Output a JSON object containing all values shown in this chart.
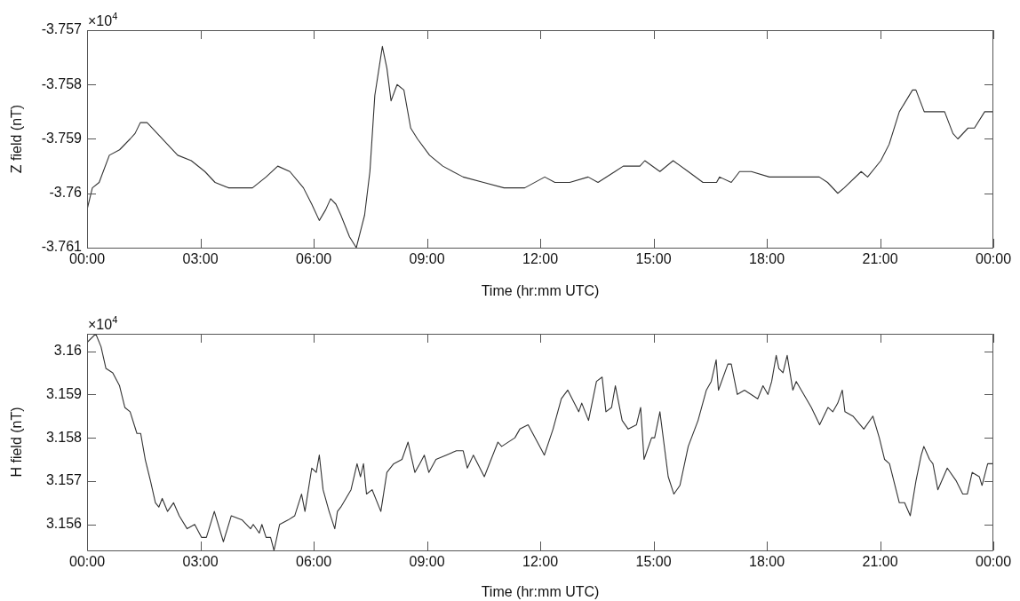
{
  "chart_data": [
    {
      "type": "line",
      "xlabel": "Time (hr:mm UTC)",
      "ylabel": "Z field (nT)",
      "annotations": [
        "×10$^{4}$"
      ],
      "grid": false,
      "legend": false,
      "marker": "none",
      "line_style": "solid",
      "xlim": [
        0,
        24
      ],
      "xticks": [
        {
          "value": 0,
          "label": "00:00"
        },
        {
          "value": 3,
          "label": "03:00"
        },
        {
          "value": 6,
          "label": "06:00"
        },
        {
          "value": 9,
          "label": "09:00"
        },
        {
          "value": 12,
          "label": "12:00"
        },
        {
          "value": 15,
          "label": "15:00"
        },
        {
          "value": 18,
          "label": "18:00"
        },
        {
          "value": 21,
          "label": "21:00"
        },
        {
          "value": 24,
          "label": "00:00"
        }
      ],
      "ylim": [
        -3.761,
        -3.757
      ],
      "yticks": [
        -3.761,
        -3.76,
        -3.759,
        -3.758,
        -3.757
      ],
      "series": [
        {
          "color": "#333333",
          "x": [
            0,
            0.14,
            0.32,
            0.59,
            0.86,
            1.14,
            1.27,
            1.41,
            1.59,
            1.86,
            2.13,
            2.4,
            2.76,
            3.12,
            3.39,
            3.75,
            4.11,
            4.38,
            4.74,
            5.05,
            5.37,
            5.73,
            5.95,
            6.15,
            6.32,
            6.45,
            6.59,
            6.72,
            6.95,
            7.13,
            7.35,
            7.49,
            7.62,
            7.82,
            7.94,
            8.05,
            8.21,
            8.39,
            8.57,
            8.75,
            9.07,
            9.42,
            9.96,
            10.5,
            11.04,
            11.59,
            12.12,
            12.39,
            12.78,
            13.27,
            13.53,
            13.98,
            14.2,
            14.64,
            14.77,
            15.17,
            15.52,
            15.92,
            16.31,
            16.67,
            16.75,
            17.06,
            17.28,
            17.59,
            18.07,
            18.29,
            18.69,
            19.08,
            19.39,
            19.61,
            19.88,
            20.05,
            20.5,
            20.67,
            21.02,
            21.24,
            21.51,
            21.86,
            21.95,
            22.17,
            22.35,
            22.71,
            22.93,
            23.06,
            23.33,
            23.5,
            23.77,
            23.99
          ],
          "values": [
            -3.7603,
            -3.7599,
            -3.7598,
            -3.7593,
            -3.7592,
            -3.759,
            -3.7589,
            -3.7587,
            -3.7587,
            -3.7589,
            -3.7591,
            -3.7593,
            -3.7594,
            -3.7596,
            -3.7598,
            -3.7599,
            -3.7599,
            -3.7599,
            -3.7597,
            -3.7595,
            -3.7596,
            -3.7599,
            -3.7602,
            -3.7605,
            -3.7603,
            -3.7601,
            -3.7602,
            -3.7604,
            -3.7608,
            -3.761,
            -3.7604,
            -3.7596,
            -3.7582,
            -3.7573,
            -3.7577,
            -3.7583,
            -3.758,
            -3.7581,
            -3.7588,
            -3.759,
            -3.7593,
            -3.7595,
            -3.7597,
            -3.7598,
            -3.7599,
            -3.7599,
            -3.7597,
            -3.7598,
            -3.7598,
            -3.7597,
            -3.7598,
            -3.7596,
            -3.7595,
            -3.7595,
            -3.7594,
            -3.7596,
            -3.7594,
            -3.7596,
            -3.7598,
            -3.7598,
            -3.7597,
            -3.7598,
            -3.7596,
            -3.7596,
            -3.7597,
            -3.7597,
            -3.7597,
            -3.7597,
            -3.7597,
            -3.7598,
            -3.76,
            -3.7599,
            -3.7596,
            -3.7597,
            -3.7594,
            -3.7591,
            -3.7585,
            -3.7581,
            -3.7581,
            -3.7585,
            -3.7585,
            -3.7585,
            -3.7589,
            -3.759,
            -3.7588,
            -3.7588,
            -3.7585,
            -3.7585
          ]
        }
      ]
    },
    {
      "type": "line",
      "xlabel": "Time (hr:mm UTC)",
      "ylabel": "H field (nT)",
      "annotations": [
        "×10$^{4}$"
      ],
      "grid": false,
      "legend": false,
      "marker": "none",
      "line_style": "solid",
      "xlim": [
        0,
        24
      ],
      "xticks": [
        {
          "value": 0,
          "label": "00:00"
        },
        {
          "value": 3,
          "label": "03:00"
        },
        {
          "value": 6,
          "label": "06:00"
        },
        {
          "value": 9,
          "label": "09:00"
        },
        {
          "value": 12,
          "label": "12:00"
        },
        {
          "value": 15,
          "label": "15:00"
        },
        {
          "value": 18,
          "label": "18:00"
        },
        {
          "value": 21,
          "label": "21:00"
        },
        {
          "value": 24,
          "label": "00:00"
        }
      ],
      "ylim": [
        3.1554,
        3.1604
      ],
      "yticks": [
        3.156,
        3.157,
        3.158,
        3.159,
        3.16
      ],
      "series": [
        {
          "color": "#333333",
          "x": [
            0,
            0.23,
            0.37,
            0.5,
            0.68,
            0.86,
            1,
            1.14,
            1.32,
            1.42,
            1.54,
            1.68,
            1.81,
            1.9,
            1.99,
            2.13,
            2.29,
            2.44,
            2.65,
            2.85,
            3.03,
            3.16,
            3.37,
            3.61,
            3.82,
            4.11,
            4.33,
            4.4,
            4.56,
            4.63,
            4.74,
            4.86,
            4.95,
            5.1,
            5.32,
            5.5,
            5.68,
            5.77,
            5.95,
            6.07,
            6.15,
            6.25,
            6.41,
            6.56,
            6.63,
            6.72,
            6.99,
            7.15,
            7.24,
            7.32,
            7.4,
            7.55,
            7.78,
            7.94,
            8.12,
            8.34,
            8.5,
            8.68,
            8.81,
            8.93,
            9.05,
            9.24,
            9.51,
            9.78,
            9.96,
            10.07,
            10.23,
            10.52,
            10.88,
            10.98,
            11.33,
            11.46,
            11.68,
            12.11,
            12.34,
            12.56,
            12.73,
            13.02,
            13.1,
            13.28,
            13.49,
            13.64,
            13.74,
            13.89,
            13.99,
            14.17,
            14.33,
            14.55,
            14.66,
            14.75,
            14.95,
            15.03,
            15.17,
            15.39,
            15.54,
            15.7,
            15.92,
            16.18,
            16.4,
            16.53,
            16.66,
            16.72,
            16.97,
            17.06,
            17.22,
            17.41,
            17.76,
            17.9,
            18.03,
            18.13,
            18.25,
            18.32,
            18.43,
            18.54,
            18.69,
            18.78,
            19.18,
            19.4,
            19.62,
            19.75,
            19.88,
            20,
            20.07,
            20.28,
            20.57,
            20.81,
            20.98,
            21.12,
            21.25,
            21.51,
            21.65,
            21.8,
            21.95,
            22.09,
            22.16,
            22.31,
            22.4,
            22.53,
            22.78,
            23.02,
            23.19,
            23.31,
            23.44,
            23.63,
            23.7,
            23.85,
            24
          ],
          "values": [
            3.1602,
            3.1604,
            3.1601,
            3.1596,
            3.1595,
            3.1592,
            3.1587,
            3.1586,
            3.1581,
            3.1581,
            3.1575,
            3.157,
            3.1565,
            3.1564,
            3.1566,
            3.1563,
            3.1565,
            3.1562,
            3.1559,
            3.156,
            3.1557,
            3.1557,
            3.1563,
            3.1556,
            3.1562,
            3.1561,
            3.1559,
            3.156,
            3.1558,
            3.156,
            3.1557,
            3.1557,
            3.1554,
            3.156,
            3.1561,
            3.1562,
            3.1567,
            3.1563,
            3.1573,
            3.1572,
            3.1576,
            3.1568,
            3.1563,
            3.1559,
            3.1563,
            3.1564,
            3.1568,
            3.1574,
            3.1571,
            3.1574,
            3.1567,
            3.1568,
            3.1563,
            3.1572,
            3.1574,
            3.1575,
            3.1579,
            3.1572,
            3.1574,
            3.1576,
            3.1572,
            3.1575,
            3.1576,
            3.1577,
            3.1577,
            3.1573,
            3.1576,
            3.1571,
            3.1579,
            3.1578,
            3.158,
            3.1582,
            3.1583,
            3.1576,
            3.1582,
            3.1589,
            3.1591,
            3.1586,
            3.1588,
            3.1584,
            3.1593,
            3.1594,
            3.1586,
            3.1587,
            3.1592,
            3.1584,
            3.1582,
            3.1583,
            3.1587,
            3.1575,
            3.158,
            3.158,
            3.1586,
            3.1571,
            3.1567,
            3.1569,
            3.1578,
            3.1584,
            3.1591,
            3.1593,
            3.1598,
            3.1591,
            3.1597,
            3.1597,
            3.159,
            3.1591,
            3.1589,
            3.1592,
            3.159,
            3.1593,
            3.1599,
            3.1596,
            3.1595,
            3.1599,
            3.1591,
            3.1593,
            3.1587,
            3.1583,
            3.1587,
            3.1586,
            3.1588,
            3.1591,
            3.1586,
            3.1585,
            3.1582,
            3.1585,
            3.158,
            3.1575,
            3.1574,
            3.1565,
            3.1565,
            3.1562,
            3.157,
            3.1576,
            3.1578,
            3.1575,
            3.1574,
            3.1568,
            3.1573,
            3.157,
            3.1567,
            3.1567,
            3.1572,
            3.1571,
            3.1569,
            3.1574,
            3.1574
          ]
        }
      ]
    }
  ]
}
